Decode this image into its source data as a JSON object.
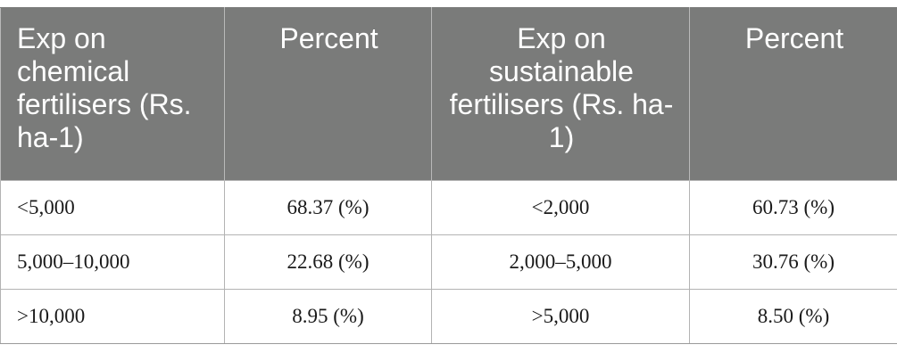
{
  "table": {
    "headers": [
      "Exp on chemical fertilisers (Rs. ha-1)",
      "Percent",
      "Exp on sustainable fertilisers (Rs. ha-1)",
      "Percent"
    ],
    "rows": [
      [
        "<5,000",
        "68.37 (%)",
        "<2,000",
        "60.73 (%)"
      ],
      [
        "5,000–10,000",
        "22.68 (%)",
        "2,000–5,000",
        "30.76 (%)"
      ],
      [
        ">10,000",
        "8.95 (%)",
        ">5,000",
        "8.50 (%)"
      ]
    ]
  },
  "colors": {
    "header_background": "#7a7b7a",
    "header_text": "#ffffff",
    "body_text": "#1a1a1a",
    "grid_lines": "#b3b3b3"
  }
}
